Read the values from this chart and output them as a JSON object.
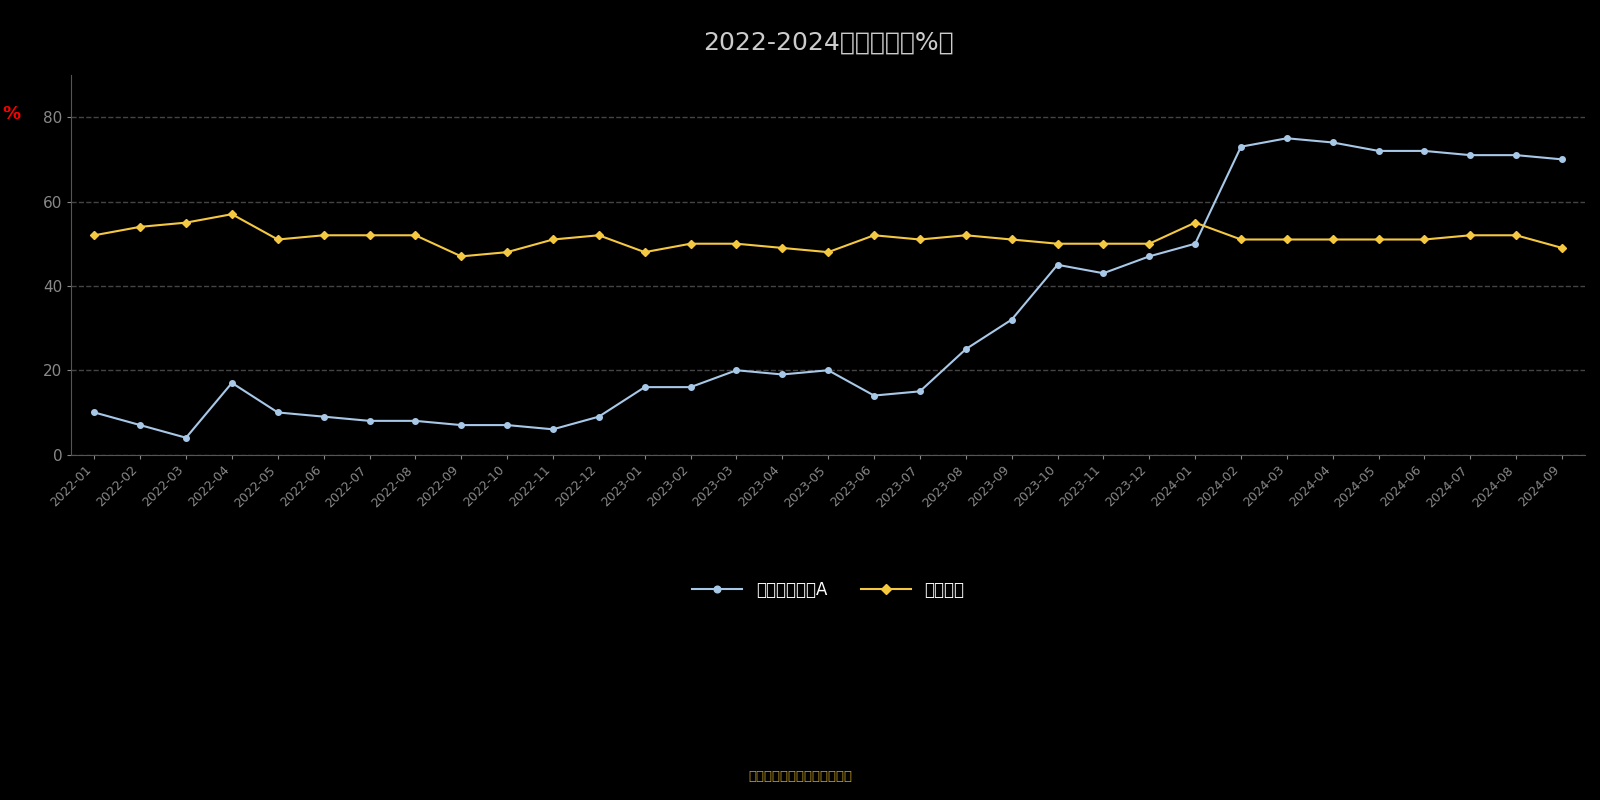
{
  "title": "2022-2024年分位图（%）",
  "ylabel_text": "%",
  "bg_color": "#000000",
  "plot_bg_color": "#000000",
  "xlabels": [
    "2022-01",
    "2022-02",
    "2022-03",
    "2022-04",
    "2022-05",
    "2022-06",
    "2022-07",
    "2022-08",
    "2022-09",
    "2022-10",
    "2022-11",
    "2022-12",
    "2023-01",
    "2023-02",
    "2023-03",
    "2023-04",
    "2023-05",
    "2023-06",
    "2023-07",
    "2023-08",
    "2023-09",
    "2023-10",
    "2023-11",
    "2023-12",
    "2024-01",
    "2024-02",
    "2024-03",
    "2024-04",
    "2024-05",
    "2024-06",
    "2024-07",
    "2024-08",
    "2024-09"
  ],
  "series1_name": "上銀鑫恒混合A",
  "series1_color": "#a8c8e8",
  "series1_values": [
    10,
    7,
    4,
    17,
    10,
    9,
    8,
    8,
    7,
    7,
    6,
    9,
    16,
    16,
    20,
    19,
    20,
    14,
    15,
    25,
    32,
    45,
    43,
    47,
    50,
    73,
    75,
    74,
    72,
    72,
    71,
    71,
    70
  ],
  "series2_name": "同类平均",
  "series2_color": "#f5c842",
  "series2_values": [
    52,
    54,
    55,
    57,
    51,
    52,
    52,
    52,
    47,
    48,
    51,
    52,
    48,
    50,
    50,
    49,
    48,
    52,
    51,
    52,
    51,
    50,
    50,
    50,
    55,
    51,
    51,
    51,
    51,
    51,
    52,
    52,
    49
  ],
  "ylim": [
    0,
    90
  ],
  "yticks": [
    0,
    20,
    40,
    60,
    80
  ],
  "source_text": "制图数据来自恒生聚源数据库",
  "title_color": "#cccccc",
  "tick_color": "#888888",
  "grid_color": "#888888",
  "spine_color": "#555555",
  "title_fontsize": 18,
  "tick_fontsize": 9,
  "legend_fontsize": 12,
  "source_color": "#c8a020"
}
